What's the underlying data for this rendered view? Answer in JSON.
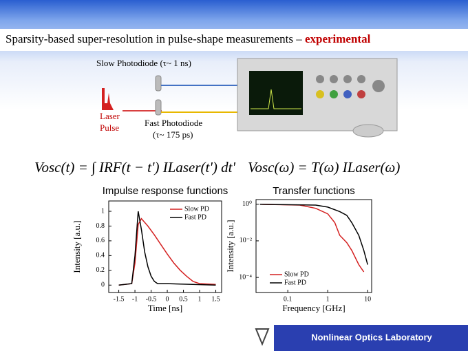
{
  "slide": {
    "title": "Sparsity-based super-resolution in pulse-shape measurements – ",
    "title_highlight": "experimental",
    "slow_pd": "Slow Photodiode (τ~ 1 ns)",
    "laser_pulse": [
      "Laser",
      "Pulse"
    ],
    "fast_pd": [
      "Fast Photodiode",
      "(τ~ 175 ps)"
    ],
    "formula_time": "Vosc(t) = ∫ IRF(t − t') ILaser(t') dt'",
    "formula_freq": "Vosc(ω) = T(ω) ILaser(ω)",
    "footer": "Nonlinear Optics Laboratory"
  },
  "chart_data": [
    {
      "type": "line",
      "title": "Impulse response functions",
      "xlabel": "Time [ns]",
      "ylabel": "Intensity [a.u.]",
      "xlim": [
        -1.81,
        1.68
      ],
      "ylim": [
        -0.1,
        1.14
      ],
      "xticks": [
        -1.5,
        -1,
        -0.5,
        0,
        0.5,
        1,
        1.5
      ],
      "yticks": [
        0,
        0.2,
        0.4,
        0.6,
        0.8,
        1
      ],
      "legend": "upper right",
      "series": [
        {
          "name": "Slow PD",
          "color": "#d42020",
          "x": [
            -1.5,
            -1.1,
            -1.0,
            -0.9,
            -0.8,
            -0.7,
            -0.6,
            -0.4,
            -0.2,
            0,
            0.2,
            0.4,
            0.6,
            0.8,
            1.0,
            1.5
          ],
          "values": [
            0,
            0.02,
            0.3,
            0.82,
            0.9,
            0.85,
            0.8,
            0.68,
            0.55,
            0.42,
            0.3,
            0.2,
            0.12,
            0.05,
            0.02,
            0.01
          ]
        },
        {
          "name": "Fast PD",
          "color": "#000000",
          "x": [
            -1.5,
            -1.1,
            -1.0,
            -0.9,
            -0.8,
            -0.7,
            -0.6,
            -0.5,
            -0.4,
            -0.3,
            0,
            1.5
          ],
          "values": [
            0,
            0.02,
            0.4,
            1.0,
            0.75,
            0.45,
            0.25,
            0.12,
            0.05,
            0.02,
            0.02,
            0
          ]
        }
      ]
    },
    {
      "type": "line",
      "title": "Transfer functions",
      "xlabel": "Frequency [GHz]",
      "ylabel": "Intensity [a.u.]",
      "xscale": "log",
      "yscale": "log",
      "xlim": [
        0.016,
        12.6
      ],
      "ylim": [
        1.5e-05,
        1.8
      ],
      "xticks": [
        0.1,
        1,
        10
      ],
      "yticks": [
        {
          "value": 1,
          "label": "10⁰"
        },
        {
          "value": 0.01,
          "label": "10⁻²"
        },
        {
          "value": 0.0001,
          "label": "10⁻⁴"
        }
      ],
      "legend": "lower left",
      "series": [
        {
          "name": "Slow PD",
          "color": "#d42020",
          "x": [
            0.02,
            0.2,
            0.5,
            1,
            1.5,
            2,
            3,
            4,
            6,
            8
          ],
          "values": [
            1,
            0.9,
            0.6,
            0.3,
            0.1,
            0.02,
            0.008,
            0.003,
            0.0005,
            0.0002
          ]
        },
        {
          "name": "Fast PD",
          "color": "#000000",
          "x": [
            0.02,
            0.5,
            1,
            2,
            3,
            4,
            6,
            8,
            10
          ],
          "values": [
            1,
            0.9,
            0.7,
            0.4,
            0.25,
            0.1,
            0.02,
            0.003,
            0.0005
          ]
        }
      ]
    }
  ]
}
